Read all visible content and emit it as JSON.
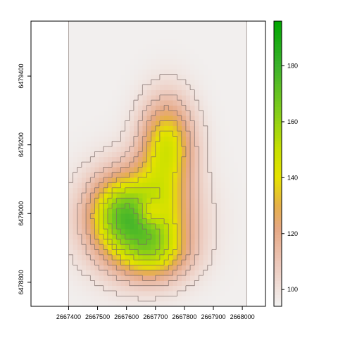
{
  "chart_data": {
    "type": "heatmap",
    "title": "",
    "xlabel": "",
    "ylabel": "",
    "x_ticks": [
      2667400,
      2667500,
      2667600,
      2667700,
      2667800,
      2667900,
      2668000
    ],
    "y_ticks": [
      6478800,
      6479000,
      6479200,
      6479400
    ],
    "xlim": [
      2667270,
      2668080
    ],
    "ylim": [
      6478730,
      6479560
    ],
    "raster_extent": {
      "x": [
        2667400,
        2668015
      ],
      "y": [
        6478730,
        6479560
      ]
    },
    "legend": {
      "placement": "right",
      "range": [
        94,
        196
      ],
      "ticks": [
        100,
        120,
        140,
        160,
        180
      ],
      "stops": [
        {
          "value": 94,
          "color": "#f2f2f2"
        },
        {
          "value": 110,
          "color": "#ecc6b8"
        },
        {
          "value": 122,
          "color": "#e6a883"
        },
        {
          "value": 130,
          "color": "#e6b04a"
        },
        {
          "value": 140,
          "color": "#e6e200"
        },
        {
          "value": 150,
          "color": "#c8e000"
        },
        {
          "value": 165,
          "color": "#7ccb1c"
        },
        {
          "value": 180,
          "color": "#3cb22c"
        },
        {
          "value": 196,
          "color": "#00a600"
        }
      ]
    },
    "surface": {
      "background": 95,
      "peaks": [
        {
          "x": 2667640,
          "y": 6478985,
          "amp": 70,
          "sx": 115,
          "sy": 95
        },
        {
          "x": 2667740,
          "y": 6479200,
          "amp": 48,
          "sx": 65,
          "sy": 95
        },
        {
          "x": 2667700,
          "y": 6478880,
          "amp": 28,
          "sx": 85,
          "sy": 55
        },
        {
          "x": 2667560,
          "y": 6479000,
          "amp": 18,
          "sx": 60,
          "sy": 70
        }
      ],
      "pits": [
        {
          "x": 2667685,
          "y": 6479005,
          "amp": 22,
          "sx": 32,
          "sy": 28
        }
      ],
      "contour_levels": [
        100,
        110,
        120,
        130,
        140,
        150,
        160,
        170,
        180
      ]
    }
  }
}
